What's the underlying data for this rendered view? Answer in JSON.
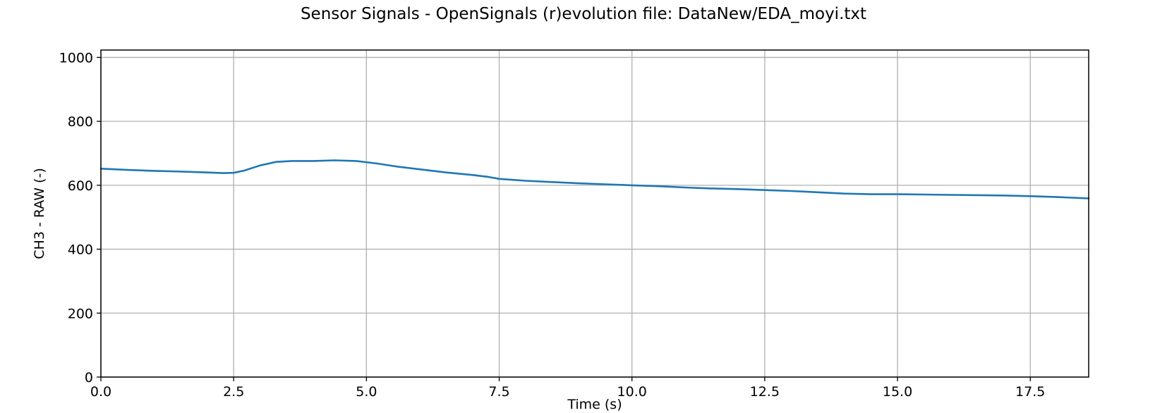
{
  "chart_data": {
    "type": "line",
    "title": "Sensor Signals - OpenSignals (r)evolution file: DataNew/EDA_moyi.txt",
    "xlabel": "Time (s)",
    "ylabel": "CH3 - RAW (-)",
    "xlim": [
      0,
      18.6
    ],
    "ylim": [
      0,
      1023
    ],
    "grid": true,
    "x_ticks": [
      0.0,
      2.5,
      5.0,
      7.5,
      10.0,
      12.5,
      15.0,
      17.5
    ],
    "x_tick_labels": [
      "0.0",
      "2.5",
      "5.0",
      "7.5",
      "10.0",
      "12.5",
      "15.0",
      "17.5"
    ],
    "y_ticks": [
      0,
      200,
      400,
      600,
      800,
      1000
    ],
    "y_tick_labels": [
      "0",
      "200",
      "400",
      "600",
      "800",
      "1000"
    ],
    "colors": {
      "series": "#1f77b4",
      "grid": "#b0b0b0"
    },
    "series": [
      {
        "x": [
          0.0,
          0.5,
          1.0,
          1.5,
          2.0,
          2.3,
          2.5,
          2.7,
          3.0,
          3.3,
          3.6,
          4.0,
          4.4,
          4.8,
          5.2,
          5.6,
          6.0,
          6.5,
          7.0,
          7.3,
          7.5,
          8.0,
          8.5,
          9.0,
          9.5,
          10.0,
          10.5,
          11.0,
          11.5,
          12.0,
          12.5,
          13.0,
          13.5,
          14.0,
          14.5,
          15.0,
          15.5,
          16.0,
          16.5,
          17.0,
          17.5,
          18.0,
          18.6
        ],
        "y": [
          652,
          648,
          645,
          643,
          640,
          638,
          639,
          646,
          662,
          673,
          676,
          676,
          678,
          676,
          668,
          658,
          650,
          640,
          632,
          626,
          620,
          614,
          610,
          606,
          603,
          600,
          597,
          593,
          590,
          588,
          585,
          582,
          578,
          574,
          572,
          572,
          571,
          570,
          569,
          568,
          566,
          563,
          559
        ]
      }
    ]
  }
}
